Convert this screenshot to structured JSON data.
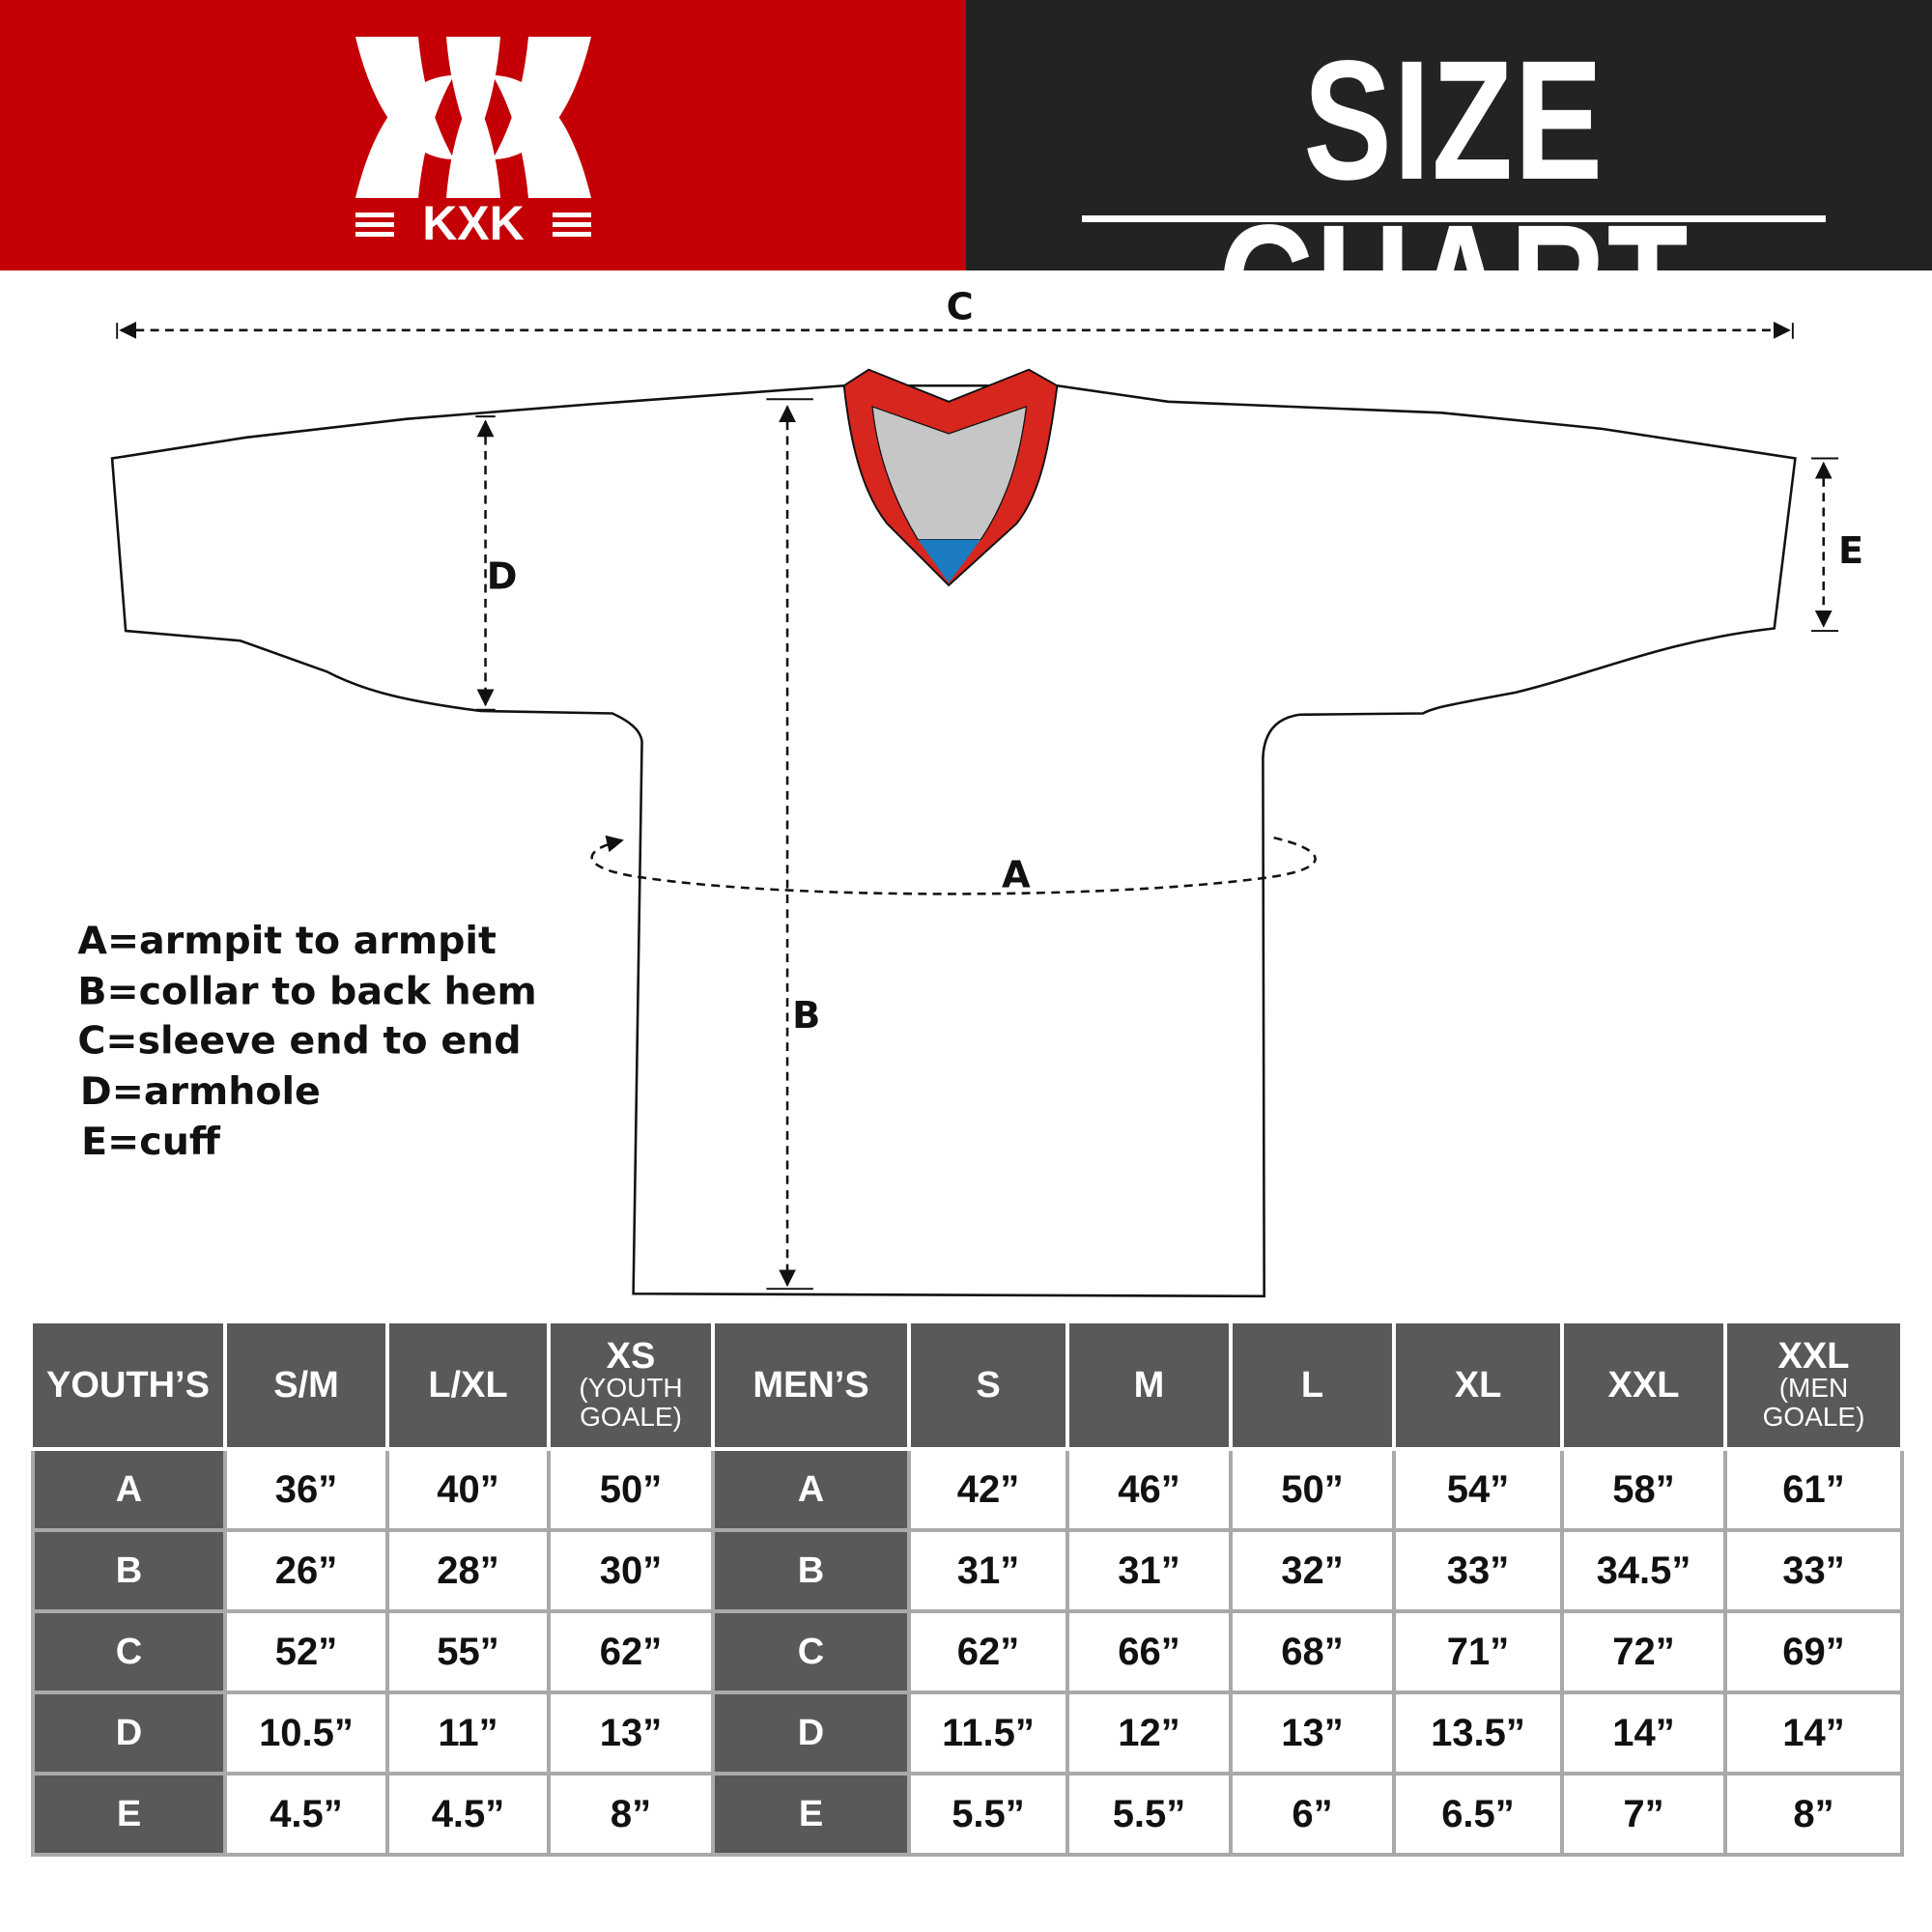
{
  "header": {
    "brand": "KXK",
    "title": "SIZE CHART",
    "brand_color": "#c40006",
    "title_bg": "#232323"
  },
  "diagram": {
    "labels": {
      "A": "A",
      "B": "B",
      "C": "C",
      "D": "D",
      "E": "E"
    },
    "legend": [
      "A=armpit to armpit",
      "B=collar to back hem",
      "C=sleeve end to end",
      "D=armhole",
      "E=cuff"
    ],
    "collar_colors": {
      "trim": "#d7261e",
      "inner": "#c6c6c6",
      "tag": "#1a7bc0"
    }
  },
  "table": {
    "youth_header": "YOUTH’S",
    "youth_sizes": [
      {
        "main": "S/M"
      },
      {
        "main": "L/XL"
      },
      {
        "main": "XS",
        "sub1": "(YOUTH",
        "sub2": "GOALE)"
      }
    ],
    "men_header": "MEN’S",
    "men_sizes": [
      {
        "main": "S"
      },
      {
        "main": "M"
      },
      {
        "main": "L"
      },
      {
        "main": "XL"
      },
      {
        "main": "XXL"
      },
      {
        "main": "XXL",
        "sub1": "(MEN",
        "sub2": "GOALE)"
      }
    ],
    "rows": [
      {
        "label": "A",
        "youth": [
          "36”",
          "40”",
          "50”"
        ],
        "men": [
          "42”",
          "46”",
          "50”",
          "54”",
          "58”",
          "61”"
        ]
      },
      {
        "label": "B",
        "youth": [
          "26”",
          "28”",
          "30”"
        ],
        "men": [
          "31”",
          "31”",
          "32”",
          "33”",
          "34.5”",
          "33”"
        ]
      },
      {
        "label": "C",
        "youth": [
          "52”",
          "55”",
          "62”"
        ],
        "men": [
          "62”",
          "66”",
          "68”",
          "71”",
          "72”",
          "69”"
        ]
      },
      {
        "label": "D",
        "youth": [
          "10.5”",
          "11”",
          "13”"
        ],
        "men": [
          "11.5”",
          "12”",
          "13”",
          "13.5”",
          "14”",
          "14”"
        ]
      },
      {
        "label": "E",
        "youth": [
          "4.5”",
          "4.5”",
          "8”"
        ],
        "men": [
          "5.5”",
          "5.5”",
          "6”",
          "6.5”",
          "7”",
          "8”"
        ]
      }
    ]
  }
}
